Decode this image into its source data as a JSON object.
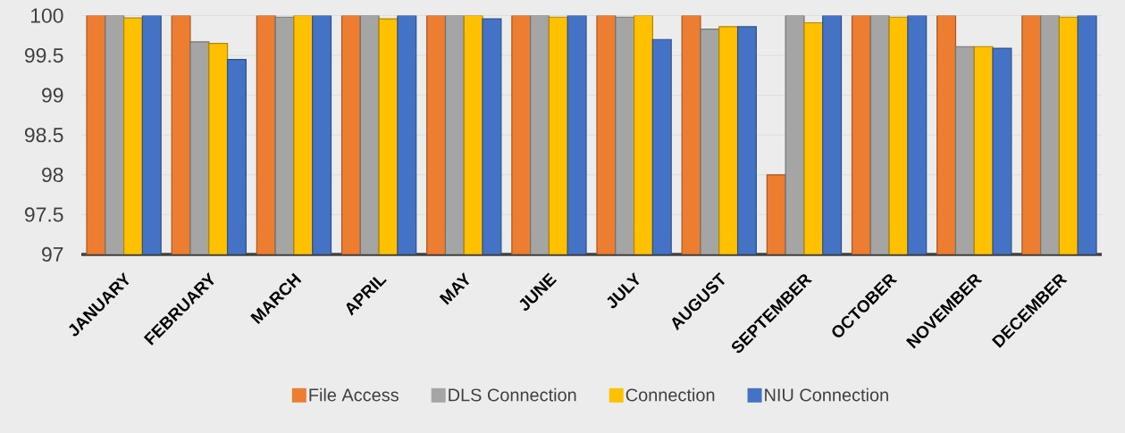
{
  "chart_data": {
    "type": "bar",
    "categories": [
      "JANUARY",
      "FEBRUARY",
      "MARCH",
      "APRIL",
      "MAY",
      "JUNE",
      "JULY",
      "AUGUST",
      "SEPTEMBER",
      "OCTOBER",
      "NOVEMBER",
      "DECEMBER"
    ],
    "series": [
      {
        "name": "File Access",
        "color": "#ed7d31",
        "values": [
          100,
          100,
          100,
          100,
          100,
          100,
          100,
          100,
          98,
          100,
          100,
          100
        ]
      },
      {
        "name": "DLS Connection",
        "color": "#a5a5a5",
        "values": [
          100,
          99.67,
          99.98,
          100,
          100,
          100,
          99.98,
          99.83,
          100,
          100,
          99.61,
          100
        ]
      },
      {
        "name": "Connection",
        "color": "#ffc000",
        "values": [
          99.97,
          99.65,
          100,
          99.96,
          100,
          99.98,
          100,
          99.86,
          99.91,
          99.98,
          99.61,
          99.98
        ]
      },
      {
        "name": "NIU Connection",
        "color": "#4472c4",
        "values": [
          100,
          99.45,
          100,
          100,
          99.96,
          100,
          99.7,
          99.86,
          100,
          100,
          99.59,
          100
        ]
      }
    ],
    "ylim": [
      97,
      100
    ],
    "yticks": [
      97,
      97.5,
      98,
      98.5,
      99,
      99.5,
      100
    ],
    "grid": "y",
    "legend": "bottom"
  }
}
